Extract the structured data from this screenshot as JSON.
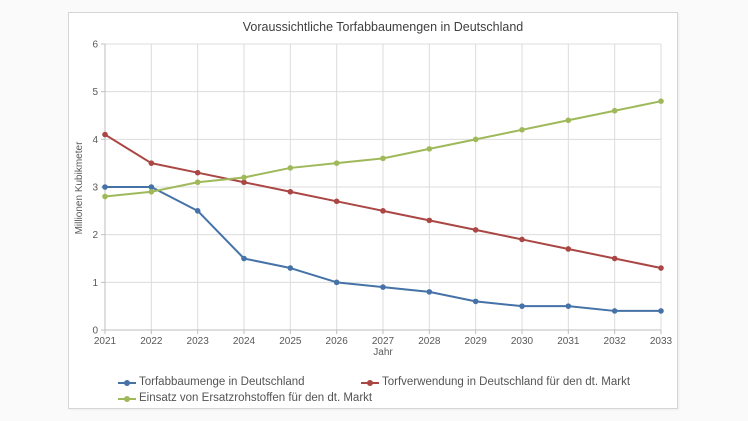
{
  "page": {
    "background": "#fafafa",
    "panel_background": "#ffffff",
    "panel_border": "#d5d5d5"
  },
  "chart_data": {
    "type": "line",
    "title": "Voraussichtliche Torfabbaumengen in Deutschland",
    "xlabel": "Jahr",
    "ylabel": "Millionen Kubikmeter",
    "x": [
      2021,
      2022,
      2023,
      2024,
      2025,
      2026,
      2027,
      2028,
      2029,
      2030,
      2031,
      2032,
      2033
    ],
    "ylim": [
      0,
      6
    ],
    "yticks": [
      0,
      1,
      2,
      3,
      4,
      5,
      6
    ],
    "grid": true,
    "legend_position": "bottom",
    "colors": {
      "grid": "#dcdcdc",
      "axis": "#bfbfbf",
      "tick_text": "#595959",
      "title_text": "#3f3f3f"
    },
    "series": [
      {
        "name": "Torfabbaumenge in Deutschland",
        "color": "#4572a7",
        "values": [
          3.0,
          3.0,
          2.5,
          1.5,
          1.3,
          1.0,
          0.9,
          0.8,
          0.6,
          0.5,
          0.5,
          0.4,
          0.4
        ]
      },
      {
        "name": "Torfverwendung in Deutschland für den dt. Markt",
        "color": "#aa4643",
        "values": [
          4.1,
          3.5,
          3.3,
          3.1,
          2.9,
          2.7,
          2.5,
          2.3,
          2.1,
          1.9,
          1.7,
          1.5,
          1.3
        ]
      },
      {
        "name": "Einsatz von Ersatzrohstoffen für den dt. Markt",
        "color": "#9fb95a",
        "values": [
          2.8,
          2.9,
          3.1,
          3.2,
          3.4,
          3.5,
          3.6,
          3.8,
          4.0,
          4.2,
          4.4,
          4.6,
          4.8
        ]
      }
    ]
  }
}
